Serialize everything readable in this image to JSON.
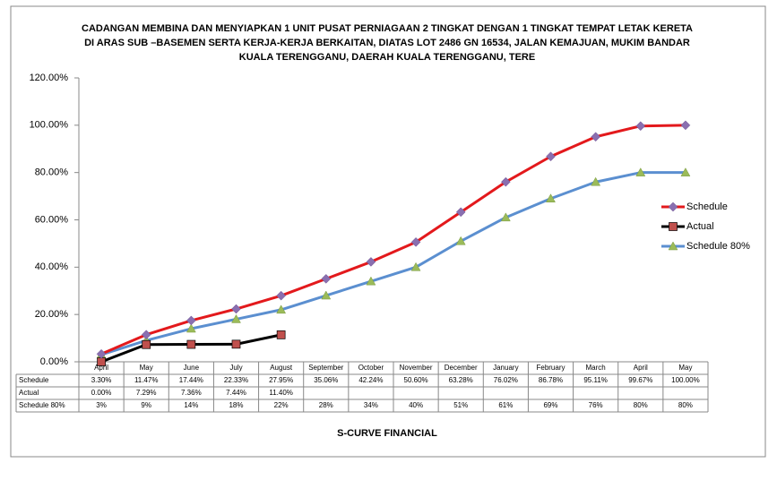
{
  "chart_data": {
    "type": "line",
    "title": [
      "CADANGAN MEMBINA DAN MENYIAPKAN 1 UNIT PUSAT PERNIAGAAN 2 TINGKAT DENGAN 1 TINGKAT TEMPAT LETAK KERETA",
      "DI ARAS SUB –BASEMEN SERTA KERJA-KERJA BERKAITAN, DIATAS LOT 2486 GN 16534, JALAN KEMAJUAN, MUKIM BANDAR",
      "KUALA TERENGGANU, DAERAH KUALA TERENGGANU, TERE"
    ],
    "x_label": "S-CURVE FINANCIAL",
    "categories": [
      "April",
      "May",
      "June",
      "July",
      "August",
      "September",
      "October",
      "November",
      "December",
      "January",
      "February",
      "March",
      "April",
      "May"
    ],
    "series": [
      {
        "name": "Schedule",
        "color": "#e3191c",
        "marker": "diamond",
        "marker_color": "#8a6fb0",
        "values": [
          3.3,
          11.47,
          17.44,
          22.33,
          27.95,
          35.06,
          42.24,
          50.6,
          63.28,
          76.02,
          86.78,
          95.11,
          99.67,
          100
        ],
        "value_labels": [
          "3.30%",
          "11.47%",
          "17.44%",
          "22.33%",
          "27.95%",
          "35.06%",
          "42.24%",
          "50.60%",
          "63.28%",
          "76.02%",
          "86.78%",
          "95.11%",
          "99.67%",
          "100.00%"
        ]
      },
      {
        "name": "Actual",
        "color": "#000000",
        "marker": "square",
        "marker_color": "#c0504d",
        "values": [
          0,
          7.29,
          7.36,
          7.44,
          11.4,
          null,
          null,
          null,
          null,
          null,
          null,
          null,
          null,
          null
        ],
        "value_labels": [
          "0.00%",
          "7.29%",
          "7.36%",
          "7.44%",
          "11.40%",
          null,
          null,
          null,
          null,
          null,
          null,
          null,
          null,
          null
        ]
      },
      {
        "name": "Schedule 80%",
        "color": "#5b8fd0",
        "marker": "triangle",
        "marker_color": "#9bbb59",
        "values": [
          3,
          9,
          14,
          18,
          22,
          28,
          34,
          40,
          51,
          61,
          69,
          76,
          80,
          80
        ],
        "value_labels": [
          "3%",
          "9%",
          "14%",
          "18%",
          "22%",
          "28%",
          "34%",
          "40%",
          "51%",
          "61%",
          "69%",
          "76%",
          "80%",
          "80%"
        ]
      }
    ],
    "ylim": [
      0,
      120
    ],
    "yticks": [
      {
        "value": 0,
        "label": "0.00%"
      },
      {
        "value": 20,
        "label": "20.00%"
      },
      {
        "value": 40,
        "label": "40.00%"
      },
      {
        "value": 60,
        "label": "60.00%"
      },
      {
        "value": 80,
        "label": "80.00%"
      },
      {
        "value": 100,
        "label": "100.00%"
      },
      {
        "value": 120,
        "label": "120.00%"
      }
    ],
    "grid": false,
    "legend": "right"
  }
}
